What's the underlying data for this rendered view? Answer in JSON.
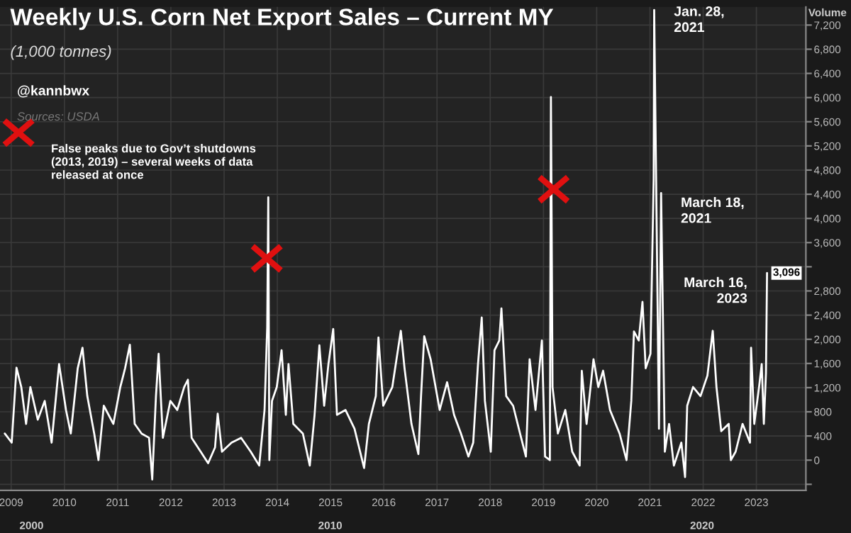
{
  "chart_data": {
    "type": "line",
    "title": "Weekly U.S. Corn Net Export Sales – Current MY",
    "subtitle": "(1,000 tonnes)",
    "ylabel": "Volume",
    "annotations": [
      "@kannbwx",
      "Sources: USDA",
      "False peaks due to Gov’t shutdowns\n(2013, 2019) – several weeks of data\nreleased at once",
      {
        "text": "Jan. 28,\n2021",
        "x": 2021.08,
        "y": 7450
      },
      {
        "text": "March 18,\n2021",
        "x": 2021.21,
        "y": 4420
      },
      {
        "text": "March 16,\n2023",
        "x": 2023.2,
        "y": 3096
      },
      "2000",
      "2010",
      "2020"
    ],
    "series": [
      {
        "color": "#ffffff",
        "x": [
          2008.88,
          2009.01,
          2009.1,
          2009.19,
          2009.28,
          2009.36,
          2009.5,
          2009.63,
          2009.76,
          2009.9,
          2010.03,
          2010.12,
          2010.25,
          2010.34,
          2010.43,
          2010.56,
          2010.64,
          2010.74,
          2010.92,
          2011.05,
          2011.14,
          2011.23,
          2011.32,
          2011.45,
          2011.59,
          2011.65,
          2011.72,
          2011.77,
          2011.85,
          2011.99,
          2012.12,
          2012.25,
          2012.32,
          2012.39,
          2012.56,
          2012.7,
          2012.83,
          2012.88,
          2012.96,
          2013.14,
          2013.32,
          2013.5,
          2013.66,
          2013.76,
          2013.81,
          2013.83,
          2013.85,
          2013.9,
          2013.99,
          2014.08,
          2014.16,
          2014.21,
          2014.3,
          2014.48,
          2014.61,
          2014.7,
          2014.79,
          2014.88,
          2014.96,
          2015.05,
          2015.12,
          2015.28,
          2015.45,
          2015.63,
          2015.72,
          2015.85,
          2015.9,
          2015.99,
          2016.16,
          2016.32,
          2016.39,
          2016.52,
          2016.65,
          2016.7,
          2016.76,
          2016.88,
          2017.05,
          2017.19,
          2017.32,
          2017.45,
          2017.59,
          2017.68,
          2017.77,
          2017.84,
          2017.9,
          2018.01,
          2018.08,
          2018.17,
          2018.21,
          2018.3,
          2018.43,
          2018.56,
          2018.67,
          2018.74,
          2018.85,
          2018.97,
          2019.03,
          2019.12,
          2019.14,
          2019.17,
          2019.27,
          2019.41,
          2019.54,
          2019.68,
          2019.72,
          2019.81,
          2019.94,
          2020.03,
          2020.12,
          2020.25,
          2020.43,
          2020.56,
          2020.65,
          2020.7,
          2020.79,
          2020.86,
          2020.92,
          2021.01,
          2021.07,
          2021.08,
          2021.17,
          2021.21,
          2021.28,
          2021.36,
          2021.45,
          2021.59,
          2021.66,
          2021.7,
          2021.81,
          2021.95,
          2022.08,
          2022.18,
          2022.25,
          2022.34,
          2022.48,
          2022.52,
          2022.61,
          2022.74,
          2022.88,
          2022.9,
          2022.96,
          2023.05,
          2023.1,
          2023.14,
          2023.18,
          2023.2
        ],
        "value_labels": [
          null,
          null,
          null,
          null,
          null,
          null,
          null,
          null,
          null,
          null,
          null,
          null,
          null,
          null,
          null,
          null,
          null,
          null,
          null,
          null,
          null,
          null,
          null,
          null,
          null,
          null,
          null,
          null,
          null,
          null,
          null,
          null,
          null,
          null,
          null,
          null,
          null,
          null,
          null,
          null,
          null,
          null,
          null,
          null,
          null,
          null,
          null,
          null,
          null,
          null,
          null,
          null,
          null,
          null,
          null,
          null,
          null,
          null,
          null,
          null,
          null,
          null,
          null,
          null,
          null,
          null,
          null,
          null,
          null,
          null,
          null,
          null,
          null,
          null,
          null,
          null,
          null,
          null,
          null,
          null,
          null,
          null,
          null,
          null,
          null,
          null,
          null,
          null,
          null,
          null,
          null,
          null,
          null,
          null,
          null,
          null,
          null,
          null,
          null,
          null,
          null,
          null,
          null,
          null,
          null,
          null,
          null,
          null,
          null,
          null,
          null,
          null,
          null,
          null,
          null,
          null,
          null,
          null,
          null,
          null,
          null,
          null,
          null,
          null,
          null,
          null,
          null,
          null,
          null,
          null,
          null,
          null,
          null,
          null,
          null,
          null,
          null,
          null,
          null,
          null,
          null,
          null,
          null,
          null,
          null,
          "3,096"
        ],
        "values": [
          440,
          290,
          1530,
          1210,
          600,
          1210,
          670,
          980,
          290,
          1590,
          830,
          440,
          1520,
          1860,
          1060,
          440,
          0,
          900,
          600,
          1210,
          1520,
          1910,
          600,
          440,
          370,
          -320,
          1060,
          1760,
          370,
          980,
          830,
          1210,
          1330,
          370,
          140,
          -50,
          210,
          770,
          140,
          290,
          370,
          140,
          -90,
          830,
          2200,
          4350,
          0,
          980,
          1210,
          1820,
          750,
          1590,
          600,
          440,
          -90,
          750,
          1900,
          900,
          1590,
          2170,
          750,
          830,
          520,
          -130,
          600,
          1060,
          2030,
          900,
          1210,
          2140,
          1520,
          600,
          100,
          1060,
          2050,
          1670,
          830,
          1290,
          750,
          440,
          60,
          290,
          1590,
          2360,
          980,
          140,
          1820,
          1980,
          2510,
          1060,
          900,
          440,
          60,
          1670,
          830,
          1980,
          60,
          0,
          6010,
          1210,
          440,
          830,
          140,
          -90,
          1480,
          600,
          1670,
          1210,
          1480,
          830,
          440,
          0,
          980,
          2130,
          1980,
          2620,
          1520,
          1760,
          4650,
          7450,
          520,
          4420,
          140,
          600,
          -90,
          290,
          -280,
          900,
          1210,
          1060,
          1400,
          2140,
          1210,
          480,
          600,
          0,
          140,
          600,
          290,
          1860,
          600,
          1210,
          1590,
          600,
          1440,
          3096
        ]
      }
    ],
    "xlim": [
      2008.79,
      2023.93
    ],
    "xticks": [
      2009,
      2010,
      2011,
      2012,
      2013,
      2014,
      2015,
      2016,
      2017,
      2018,
      2019,
      2020,
      2021,
      2022,
      2023
    ],
    "ylim": [
      -500,
      7500
    ],
    "yticks": [
      {
        "value": -400,
        "label": null
      },
      0,
      400,
      800,
      {
        "value": 1200,
        "label": "1,200"
      },
      {
        "value": 1600,
        "label": "1,600"
      },
      {
        "value": 2000,
        "label": "2,000"
      },
      {
        "value": 2400,
        "label": "2,400"
      },
      {
        "value": 2800,
        "label": "2,800"
      },
      {
        "value": 3200,
        "label": null
      },
      {
        "value": 3600,
        "label": "3,600"
      },
      {
        "value": 4000,
        "label": "4,000"
      },
      {
        "value": 4400,
        "label": "4,400"
      },
      {
        "value": 4800,
        "label": "4,800"
      },
      {
        "value": 5200,
        "label": "5,200"
      },
      {
        "value": 5600,
        "label": "5,600"
      },
      {
        "value": 6000,
        "label": "6,000"
      },
      {
        "value": 6400,
        "label": "6,400"
      },
      {
        "value": 6800,
        "label": "6,800"
      },
      {
        "value": 7200,
        "label": "7,200"
      }
    ],
    "grid": true,
    "legend": false,
    "marker": "none",
    "line_style": "solid"
  }
}
